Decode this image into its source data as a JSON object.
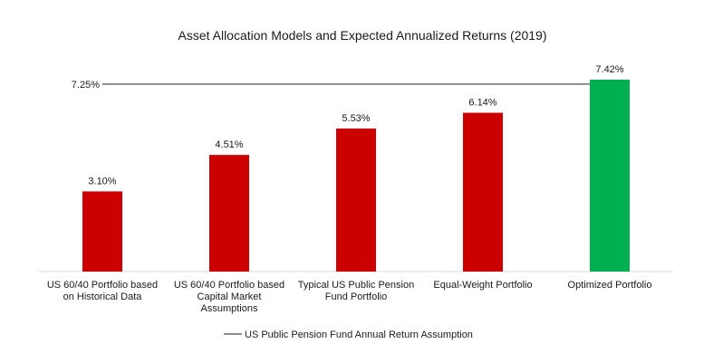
{
  "chart_data": {
    "type": "bar",
    "title": "Asset Allocation Models and Expected Annualized Returns (2019)",
    "xlabel": "",
    "ylabel": "",
    "ylim": [
      0,
      8
    ],
    "grid": false,
    "legend_position": "bottom",
    "categories": [
      [
        "US 60/40 Portfolio based",
        "on Historical Data"
      ],
      [
        "US 60/40 Portfolio based",
        "Capital Market",
        "Assumptions"
      ],
      [
        "Typical US Public Pension",
        "Fund Portfolio"
      ],
      [
        "Equal-Weight Portfolio"
      ],
      [
        "Optimized Portfolio"
      ]
    ],
    "values": [
      3.1,
      4.51,
      5.53,
      6.14,
      7.42
    ],
    "value_labels": [
      "3.10%",
      "4.51%",
      "5.53%",
      "6.14%",
      "7.42%"
    ],
    "bar_colors": [
      "#cc0000",
      "#cc0000",
      "#cc0000",
      "#cc0000",
      "#00b050"
    ],
    "reference_line": {
      "name": "US Public Pension Fund Annual Return Assumption",
      "value": 7.25,
      "label": "7.25%",
      "color": "#8c8c8c"
    }
  }
}
